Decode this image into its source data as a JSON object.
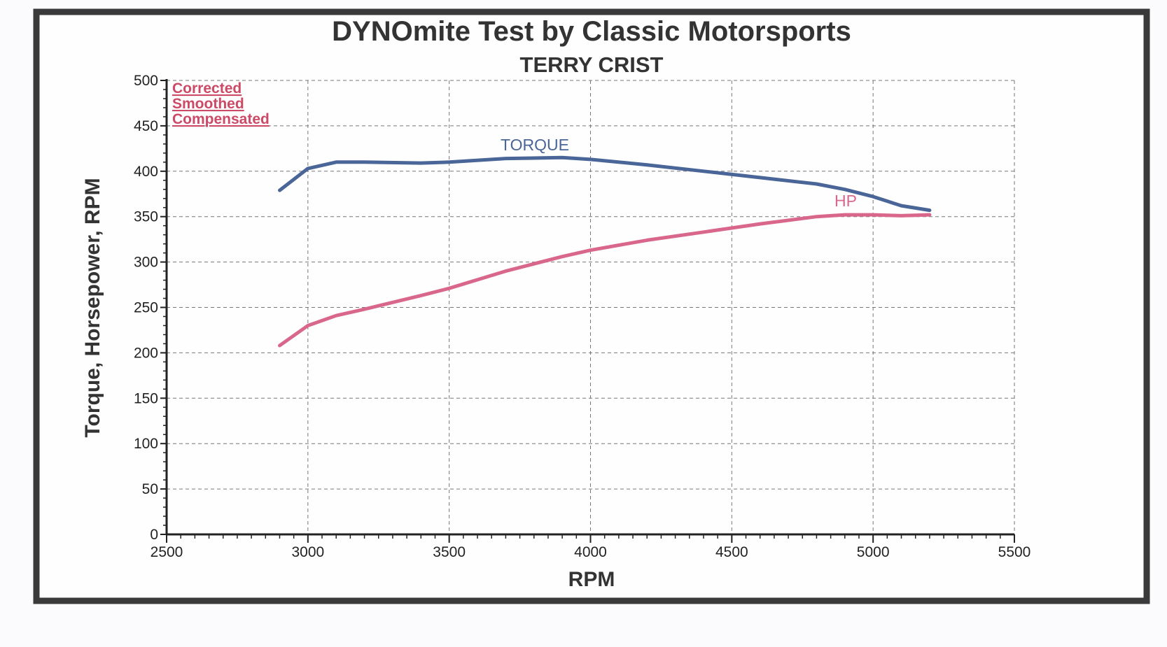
{
  "chart_data": {
    "type": "line",
    "title": "DYNOmite Test by Classic Motorsports",
    "subtitle": "TERRY CRIST",
    "xlabel": "RPM",
    "ylabel": "Torque, Horsepower, RPM",
    "xlim": [
      2500,
      5500
    ],
    "ylim": [
      0,
      500
    ],
    "xticks": [
      2500,
      3000,
      3500,
      4000,
      4500,
      5000,
      5500
    ],
    "yticks": [
      0,
      50,
      100,
      150,
      200,
      250,
      300,
      350,
      400,
      450,
      500
    ],
    "grid": true,
    "notes": [
      "Corrected",
      "Smoothed",
      "Compensated"
    ],
    "colors": {
      "torque": "#4a6597",
      "hp": "#d9678c",
      "notes": "#cc4a66",
      "frame": "#3a3a3a"
    },
    "series": [
      {
        "name": "TORQUE",
        "x": [
          2900,
          3000,
          3100,
          3200,
          3400,
          3500,
          3700,
          3900,
          4000,
          4200,
          4400,
          4600,
          4800,
          4900,
          5000,
          5100,
          5200
        ],
        "y": [
          379,
          403,
          410,
          410,
          409,
          410,
          414,
          415,
          413,
          407,
          400,
          393,
          386,
          380,
          372,
          362,
          357
        ]
      },
      {
        "name": "HP",
        "x": [
          2900,
          3000,
          3100,
          3200,
          3400,
          3500,
          3700,
          3900,
          4000,
          4200,
          4400,
          4600,
          4800,
          4900,
          5000,
          5100,
          5200
        ],
        "y": [
          208,
          230,
          241,
          248,
          263,
          271,
          290,
          306,
          313,
          324,
          333,
          342,
          350,
          352,
          352,
          351,
          352
        ]
      }
    ]
  }
}
